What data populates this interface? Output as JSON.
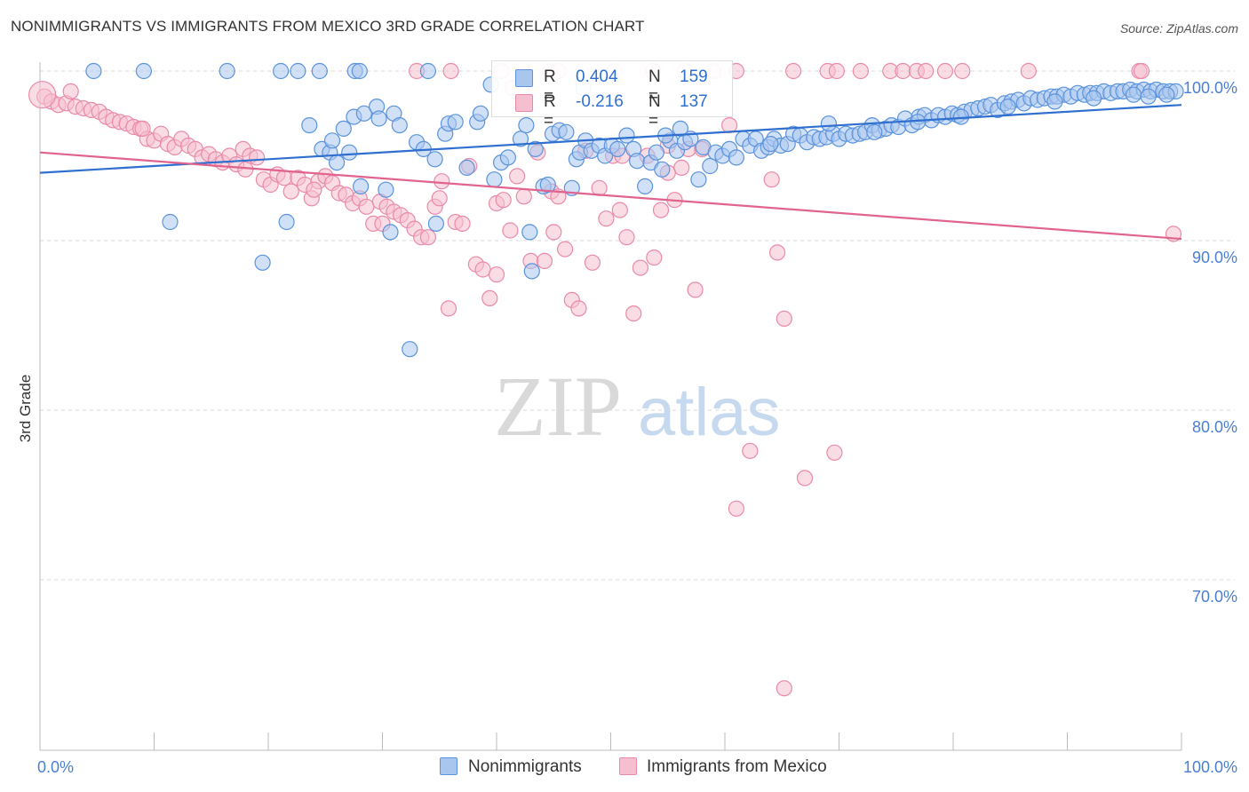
{
  "header": {
    "title": "NONIMMIGRANTS VS IMMIGRANTS FROM MEXICO 3RD GRADE CORRELATION CHART",
    "source": "Source: ZipAtlas.com"
  },
  "watermark": {
    "zip": "ZIP",
    "atlas": "atlas"
  },
  "colors": {
    "blue_fill": "#a9c6ef",
    "blue_stroke": "#5b93dc",
    "blue_line": "#2f6fd0",
    "pink_fill": "#f6bfd0",
    "pink_stroke": "#e98aa9",
    "pink_line": "#e0648e",
    "axis_text": "#4a7fd4",
    "grid": "#d8d8d8"
  },
  "stats": [
    {
      "label_r": "R = ",
      "r": "0.404",
      "label_n": "N = ",
      "n": "159"
    },
    {
      "label_r": "R = ",
      "r": "-0.216",
      "label_n": "N = ",
      "n": "137"
    }
  ],
  "chart_data": {
    "type": "scatter",
    "title": "NONIMMIGRANTS VS IMMIGRANTS FROM MEXICO 3RD GRADE CORRELATION CHART",
    "xlabel": "",
    "ylabel": "3rd Grade",
    "xlim": [
      0,
      100
    ],
    "ylim": [
      61,
      102
    ],
    "x_tick_labels": [
      "0.0%",
      "100.0%"
    ],
    "y_ticks": [
      {
        "value": 100,
        "label": "100.0%"
      },
      {
        "value": 90,
        "label": "90.0%"
      },
      {
        "value": 80,
        "label": "80.0%"
      },
      {
        "value": 70,
        "label": "70.0%"
      }
    ],
    "legend": [
      "Nonimmigrants",
      "Immigrants from Mexico"
    ],
    "series": [
      {
        "name": "Nonimmigrants",
        "r": 0.404,
        "n": 159,
        "trend": [
          [
            0,
            94.0
          ],
          [
            100,
            98.0
          ]
        ],
        "points": [
          [
            4.7,
            100
          ],
          [
            9.1,
            100
          ],
          [
            16.4,
            100
          ],
          [
            21.1,
            100
          ],
          [
            22.6,
            100
          ],
          [
            27.6,
            100
          ],
          [
            28.0,
            100
          ],
          [
            34.0,
            100
          ],
          [
            11.4,
            91.1
          ],
          [
            19.5,
            88.7
          ],
          [
            21.6,
            91.1
          ],
          [
            23.6,
            96.8
          ],
          [
            24.7,
            95.4
          ],
          [
            25.4,
            95.2
          ],
          [
            25.6,
            95.9
          ],
          [
            26.0,
            94.6
          ],
          [
            26.6,
            96.6
          ],
          [
            27.1,
            95.2
          ],
          [
            27.5,
            97.3
          ],
          [
            28.1,
            93.2
          ],
          [
            28.4,
            97.5
          ],
          [
            29.5,
            97.9
          ],
          [
            29.7,
            97.2
          ],
          [
            30.3,
            93.0
          ],
          [
            30.7,
            90.5
          ],
          [
            31.0,
            97.5
          ],
          [
            31.5,
            96.8
          ],
          [
            32.4,
            83.6
          ],
          [
            33.0,
            95.8
          ],
          [
            33.6,
            95.4
          ],
          [
            34.6,
            94.8
          ],
          [
            34.7,
            91.0
          ],
          [
            35.5,
            96.3
          ],
          [
            35.8,
            96.9
          ],
          [
            36.4,
            97.0
          ],
          [
            37.4,
            94.3
          ],
          [
            38.3,
            97.0
          ],
          [
            38.6,
            97.5
          ],
          [
            39.5,
            99.2
          ],
          [
            39.8,
            93.6
          ],
          [
            40.4,
            94.6
          ],
          [
            41.0,
            94.9
          ],
          [
            42.1,
            96.0
          ],
          [
            42.6,
            96.8
          ],
          [
            42.9,
            90.5
          ],
          [
            43.1,
            88.2
          ],
          [
            43.4,
            95.4
          ],
          [
            44.1,
            93.2
          ],
          [
            44.5,
            93.3
          ],
          [
            44.9,
            96.3
          ],
          [
            45.5,
            96.5
          ],
          [
            46.1,
            96.4
          ],
          [
            46.6,
            93.1
          ],
          [
            47.0,
            94.8
          ],
          [
            47.3,
            95.2
          ],
          [
            47.8,
            95.9
          ],
          [
            48.3,
            95.3
          ],
          [
            49.0,
            95.6
          ],
          [
            49.5,
            95.0
          ],
          [
            50.1,
            95.6
          ],
          [
            50.6,
            95.4
          ],
          [
            51.4,
            96.2
          ],
          [
            52.0,
            95.4
          ],
          [
            52.3,
            94.7
          ],
          [
            53.0,
            93.2
          ],
          [
            53.5,
            94.6
          ],
          [
            54.0,
            95.2
          ],
          [
            54.5,
            94.2
          ],
          [
            55.2,
            95.9
          ],
          [
            55.8,
            95.3
          ],
          [
            56.5,
            95.8
          ],
          [
            57.0,
            96.0
          ],
          [
            57.7,
            93.6
          ],
          [
            58.1,
            95.5
          ],
          [
            58.7,
            94.4
          ],
          [
            59.2,
            95.2
          ],
          [
            59.8,
            95.0
          ],
          [
            60.4,
            95.4
          ],
          [
            61.0,
            94.9
          ],
          [
            61.6,
            96.0
          ],
          [
            62.2,
            95.6
          ],
          [
            62.7,
            96.0
          ],
          [
            63.2,
            95.3
          ],
          [
            63.8,
            95.5
          ],
          [
            64.3,
            96.0
          ],
          [
            64.9,
            95.6
          ],
          [
            65.5,
            95.7
          ],
          [
            66.0,
            96.3
          ],
          [
            66.6,
            96.2
          ],
          [
            67.2,
            95.8
          ],
          [
            67.8,
            96.1
          ],
          [
            68.3,
            96.0
          ],
          [
            68.9,
            96.1
          ],
          [
            69.5,
            96.3
          ],
          [
            70.0,
            96.0
          ],
          [
            70.6,
            96.3
          ],
          [
            71.2,
            96.2
          ],
          [
            71.8,
            96.3
          ],
          [
            72.3,
            96.4
          ],
          [
            72.9,
            96.8
          ],
          [
            73.5,
            96.5
          ],
          [
            74.1,
            96.6
          ],
          [
            74.6,
            96.8
          ],
          [
            75.2,
            96.7
          ],
          [
            75.8,
            97.2
          ],
          [
            76.4,
            96.8
          ],
          [
            77.0,
            97.3
          ],
          [
            77.5,
            97.4
          ],
          [
            78.1,
            97.1
          ],
          [
            78.7,
            97.4
          ],
          [
            79.3,
            97.3
          ],
          [
            79.9,
            97.5
          ],
          [
            80.4,
            97.4
          ],
          [
            81.0,
            97.6
          ],
          [
            81.6,
            97.7
          ],
          [
            82.2,
            97.8
          ],
          [
            82.8,
            97.9
          ],
          [
            83.3,
            98.0
          ],
          [
            83.9,
            97.7
          ],
          [
            84.5,
            98.1
          ],
          [
            85.1,
            98.2
          ],
          [
            85.7,
            98.3
          ],
          [
            86.2,
            98.1
          ],
          [
            86.8,
            98.4
          ],
          [
            87.4,
            98.3
          ],
          [
            88.0,
            98.4
          ],
          [
            88.6,
            98.5
          ],
          [
            89.1,
            98.5
          ],
          [
            89.7,
            98.6
          ],
          [
            90.3,
            98.5
          ],
          [
            90.9,
            98.7
          ],
          [
            91.5,
            98.6
          ],
          [
            92.0,
            98.7
          ],
          [
            92.6,
            98.7
          ],
          [
            93.2,
            98.8
          ],
          [
            93.8,
            98.7
          ],
          [
            94.4,
            98.8
          ],
          [
            94.9,
            98.8
          ],
          [
            95.5,
            98.9
          ],
          [
            96.1,
            98.8
          ],
          [
            96.7,
            98.9
          ],
          [
            97.3,
            98.8
          ],
          [
            97.8,
            98.9
          ],
          [
            98.4,
            98.8
          ],
          [
            99.0,
            98.8
          ],
          [
            99.5,
            98.8
          ],
          [
            24.5,
            100
          ],
          [
            47.6,
            99.0
          ],
          [
            54.8,
            96.2
          ],
          [
            56.1,
            96.6
          ],
          [
            64.0,
            95.7
          ],
          [
            69.1,
            96.9
          ],
          [
            73.1,
            96.4
          ],
          [
            76.9,
            97.0
          ],
          [
            80.7,
            97.3
          ],
          [
            84.8,
            97.9
          ],
          [
            88.9,
            98.2
          ],
          [
            92.3,
            98.4
          ],
          [
            95.8,
            98.6
          ],
          [
            98.7,
            98.6
          ],
          [
            97.1,
            98.5
          ]
        ]
      },
      {
        "name": "Immigrants from Mexico",
        "r": -0.216,
        "n": 137,
        "trend": [
          [
            0,
            95.2
          ],
          [
            100,
            90.1
          ]
        ],
        "points": [
          [
            0.4,
            98.5
          ],
          [
            1.0,
            98.2
          ],
          [
            1.6,
            98.0
          ],
          [
            2.3,
            98.1
          ],
          [
            3.1,
            97.9
          ],
          [
            3.8,
            97.8
          ],
          [
            4.5,
            97.7
          ],
          [
            5.2,
            97.6
          ],
          [
            5.8,
            97.3
          ],
          [
            6.4,
            97.1
          ],
          [
            7.0,
            97.0
          ],
          [
            7.6,
            96.9
          ],
          [
            8.2,
            96.7
          ],
          [
            8.8,
            96.6
          ],
          [
            9.4,
            96.0
          ],
          [
            10.0,
            95.9
          ],
          [
            10.6,
            96.3
          ],
          [
            11.2,
            95.7
          ],
          [
            11.8,
            95.5
          ],
          [
            12.4,
            96.0
          ],
          [
            13.0,
            95.6
          ],
          [
            13.6,
            95.4
          ],
          [
            14.2,
            94.9
          ],
          [
            14.8,
            95.1
          ],
          [
            15.4,
            94.8
          ],
          [
            16.0,
            94.6
          ],
          [
            16.6,
            95.0
          ],
          [
            17.2,
            94.5
          ],
          [
            17.8,
            95.4
          ],
          [
            18.4,
            95.0
          ],
          [
            19.0,
            94.9
          ],
          [
            19.6,
            93.6
          ],
          [
            20.2,
            93.3
          ],
          [
            20.8,
            93.9
          ],
          [
            21.4,
            93.7
          ],
          [
            22.0,
            92.9
          ],
          [
            22.6,
            93.7
          ],
          [
            23.2,
            93.3
          ],
          [
            23.8,
            92.5
          ],
          [
            24.4,
            93.5
          ],
          [
            25.0,
            93.8
          ],
          [
            25.6,
            93.4
          ],
          [
            26.2,
            92.8
          ],
          [
            26.8,
            92.7
          ],
          [
            27.4,
            92.2
          ],
          [
            28.0,
            92.5
          ],
          [
            28.6,
            92.0
          ],
          [
            29.2,
            91.0
          ],
          [
            29.8,
            92.3
          ],
          [
            30.4,
            92.0
          ],
          [
            31.0,
            91.7
          ],
          [
            31.6,
            91.5
          ],
          [
            32.2,
            91.2
          ],
          [
            32.8,
            90.7
          ],
          [
            33.4,
            90.2
          ],
          [
            34.0,
            90.2
          ],
          [
            34.6,
            92.0
          ],
          [
            35.2,
            93.5
          ],
          [
            35.8,
            86.0
          ],
          [
            36.4,
            91.1
          ],
          [
            37.0,
            91.0
          ],
          [
            37.6,
            94.4
          ],
          [
            38.2,
            88.6
          ],
          [
            38.8,
            88.3
          ],
          [
            39.4,
            86.6
          ],
          [
            40.0,
            92.2
          ],
          [
            40.6,
            92.4
          ],
          [
            41.2,
            90.6
          ],
          [
            41.8,
            93.8
          ],
          [
            42.4,
            92.6
          ],
          [
            43.0,
            88.8
          ],
          [
            43.6,
            95.2
          ],
          [
            44.2,
            88.8
          ],
          [
            44.8,
            92.9
          ],
          [
            45.4,
            92.6
          ],
          [
            46.0,
            89.5
          ],
          [
            46.6,
            86.5
          ],
          [
            47.2,
            86.0
          ],
          [
            47.8,
            95.3
          ],
          [
            48.4,
            88.7
          ],
          [
            49.0,
            93.1
          ],
          [
            49.6,
            91.3
          ],
          [
            50.2,
            95.0
          ],
          [
            50.8,
            91.8
          ],
          [
            51.4,
            90.2
          ],
          [
            52.0,
            85.7
          ],
          [
            52.6,
            88.4
          ],
          [
            53.2,
            95.0
          ],
          [
            53.8,
            89.0
          ],
          [
            54.4,
            91.8
          ],
          [
            55.0,
            95.6
          ],
          [
            55.6,
            92.4
          ],
          [
            56.2,
            94.3
          ],
          [
            56.8,
            95.4
          ],
          [
            57.4,
            87.1
          ],
          [
            58.0,
            95.4
          ],
          [
            60.4,
            96.8
          ],
          [
            61.0,
            100
          ],
          [
            62.2,
            77.6
          ],
          [
            61.0,
            74.2
          ],
          [
            64.1,
            93.6
          ],
          [
            64.6,
            89.3
          ],
          [
            65.2,
            85.4
          ],
          [
            65.2,
            63.6
          ],
          [
            66.0,
            100
          ],
          [
            67.0,
            76.0
          ],
          [
            69.0,
            100
          ],
          [
            69.6,
            77.5
          ],
          [
            69.8,
            100
          ],
          [
            71.9,
            100
          ],
          [
            74.5,
            100
          ],
          [
            75.6,
            100
          ],
          [
            76.8,
            100
          ],
          [
            77.6,
            100
          ],
          [
            79.3,
            100
          ],
          [
            80.8,
            100
          ],
          [
            86.6,
            100
          ],
          [
            96.3,
            100
          ],
          [
            96.5,
            100
          ],
          [
            99.3,
            90.4
          ],
          [
            33.0,
            100
          ],
          [
            36.0,
            100
          ],
          [
            40.4,
            100
          ],
          [
            44.7,
            100
          ],
          [
            45.4,
            100
          ],
          [
            50.3,
            100
          ],
          [
            53.7,
            100
          ],
          [
            56.5,
            100
          ],
          [
            59.0,
            100
          ],
          [
            41.4,
            99.0
          ],
          [
            2.7,
            98.8
          ],
          [
            9.0,
            96.6
          ],
          [
            18.0,
            94.2
          ],
          [
            24.0,
            93.0
          ],
          [
            30.0,
            91.0
          ],
          [
            35.0,
            92.5
          ],
          [
            40.0,
            88.0
          ],
          [
            45.0,
            90.5
          ],
          [
            51.0,
            95.0
          ],
          [
            55.0,
            94.0
          ]
        ]
      }
    ]
  }
}
